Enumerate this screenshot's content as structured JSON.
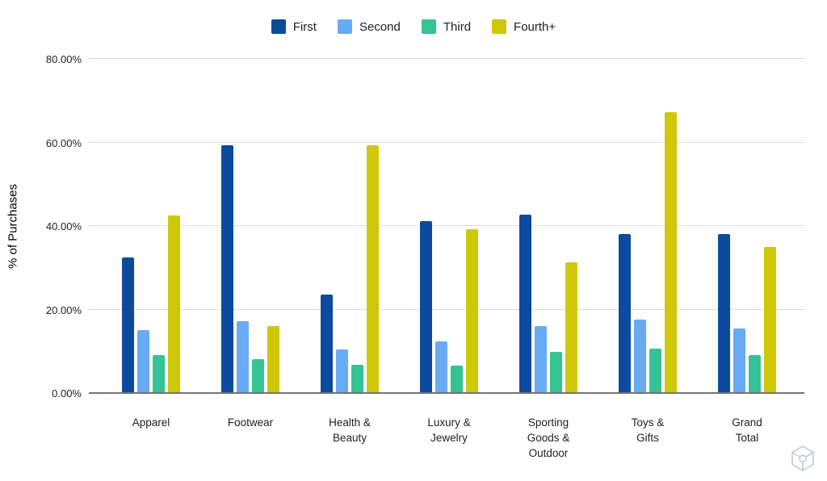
{
  "chart_data": {
    "type": "bar",
    "title": "",
    "xlabel": "",
    "ylabel": "% of Purchases",
    "ylim": [
      0,
      80
    ],
    "grid": true,
    "legend_position": "top",
    "yticks": [
      {
        "value": 0,
        "label": "0.00%"
      },
      {
        "value": 20,
        "label": "20.00%"
      },
      {
        "value": 40,
        "label": "40.00%"
      },
      {
        "value": 60,
        "label": "60.00%"
      },
      {
        "value": 80,
        "label": "80.00%"
      }
    ],
    "categories": [
      "Apparel",
      "Footwear",
      "Health & Beauty",
      "Luxury & Jewelry",
      "Sporting Goods & Outdoor",
      "Toys & Gifts",
      "Grand Total"
    ],
    "category_labels": [
      [
        "Apparel"
      ],
      [
        "Footwear"
      ],
      [
        "Health &",
        "Beauty"
      ],
      [
        "Luxury &",
        "Jewelry"
      ],
      [
        "Sporting",
        "Goods &",
        "Outdoor"
      ],
      [
        "Toys &",
        "Gifts"
      ],
      [
        "Grand",
        "Total"
      ]
    ],
    "series": [
      {
        "name": "First",
        "color": "#0c4a9e",
        "values": [
          32.3,
          59.2,
          23.4,
          41.0,
          42.6,
          37.8,
          37.9
        ]
      },
      {
        "name": "Second",
        "color": "#69aaf5",
        "values": [
          14.9,
          17.0,
          10.2,
          12.2,
          15.9,
          17.3,
          15.2
        ]
      },
      {
        "name": "Third",
        "color": "#35c294",
        "values": [
          8.9,
          7.9,
          6.5,
          6.4,
          9.7,
          10.4,
          8.9
        ]
      },
      {
        "name": "Fourth+",
        "color": "#cfc808",
        "values": [
          42.3,
          15.8,
          59.2,
          39.1,
          31.1,
          67.0,
          34.8
        ]
      }
    ]
  },
  "colors": {
    "gridline": "#dcdcdc",
    "axis_baseline": "#737373",
    "text": "#202124",
    "watermark": "#c6cde0"
  },
  "watermark": {
    "icon_name": "cube-logo-icon"
  }
}
